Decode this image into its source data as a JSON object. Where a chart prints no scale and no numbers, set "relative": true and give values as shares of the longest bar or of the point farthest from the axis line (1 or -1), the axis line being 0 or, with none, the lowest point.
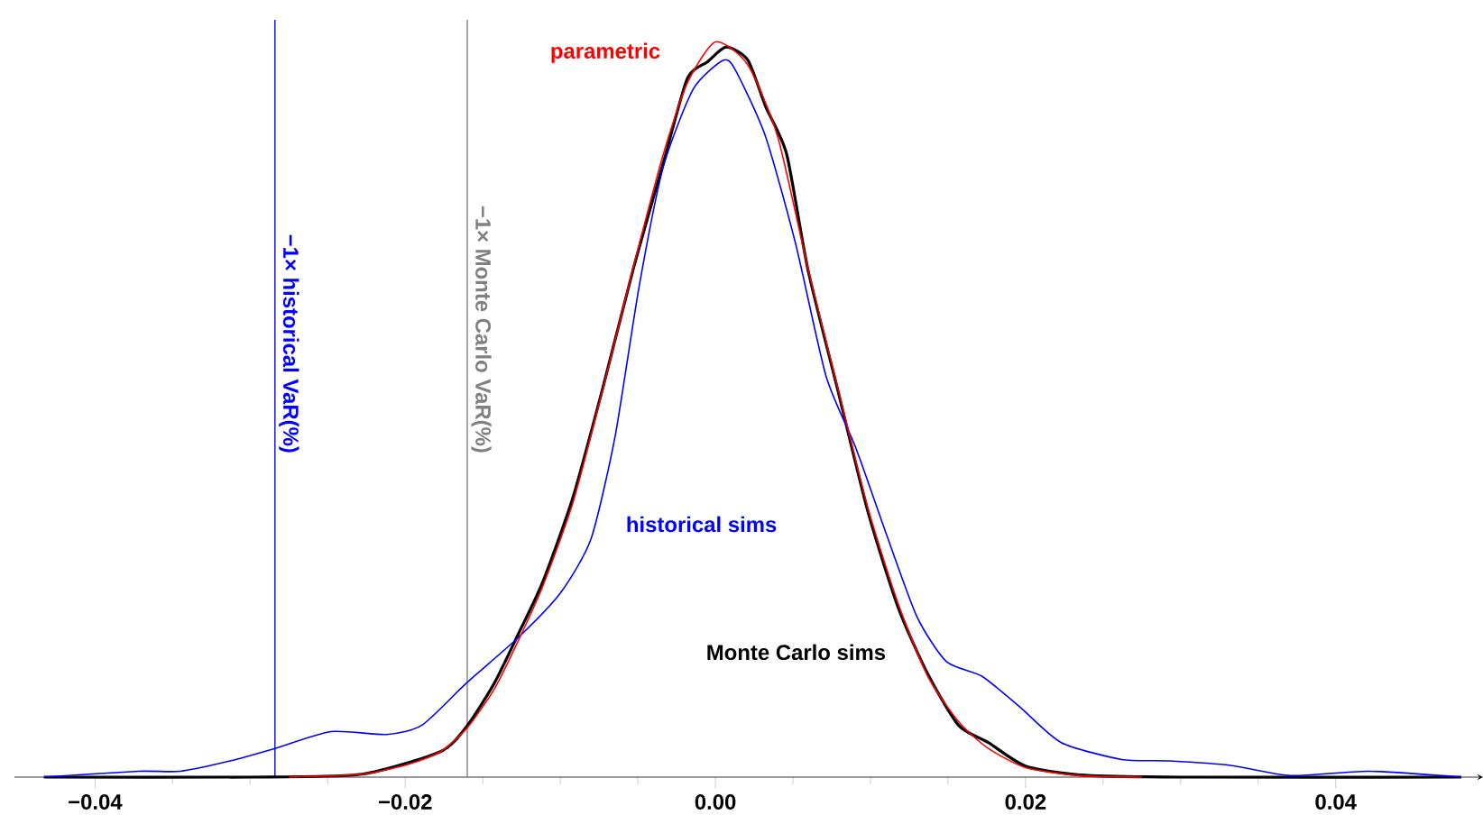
{
  "chart_data": {
    "type": "line",
    "relative": true,
    "grid": false,
    "marker": "none",
    "line_style": "solid",
    "xlim": [
      -0.0452,
      0.0495
    ],
    "xticks": [
      {
        "value": -0.04,
        "label": "−0.04"
      },
      {
        "value": -0.02,
        "label": "−0.02"
      },
      {
        "value": 0,
        "label": "0.00"
      },
      {
        "value": 0.02,
        "label": "0.02"
      },
      {
        "value": 0.04,
        "label": "0.04"
      }
    ],
    "series": [
      {
        "name": "parametric",
        "color": "#ff0000",
        "x": [
          -0.0275,
          -0.0228,
          -0.0197,
          -0.0177,
          -0.016,
          -0.01425,
          -0.0127,
          -0.01114,
          -0.00919,
          -0.00725,
          -0.00531,
          -0.00336,
          -0.00181,
          0.0,
          0.00208,
          0.00402,
          0.00597,
          0.00791,
          0.00985,
          0.0118,
          0.0137,
          0.0157,
          0.0176,
          0.02,
          0.0235,
          0.0275
        ],
        "values": [
          0,
          0.004,
          0.018,
          0.035,
          0.067,
          0.12,
          0.186,
          0.259,
          0.373,
          0.528,
          0.692,
          0.847,
          0.944,
          1.0,
          0.969,
          0.871,
          0.692,
          0.528,
          0.365,
          0.235,
          0.137,
          0.075,
          0.039,
          0.013,
          0.002,
          0
        ]
      },
      {
        "name": "Monte Carlo sims",
        "color": "#000000",
        "x": [
          -0.0433,
          -0.03,
          -0.0228,
          -0.0177,
          -0.016,
          -0.01425,
          -0.0127,
          -0.01114,
          -0.00919,
          -0.00725,
          -0.00531,
          -0.00336,
          -0.00181,
          -0.0005,
          0.0007,
          0.0021,
          0.00324,
          0.0046,
          0.00597,
          0.00791,
          0.00985,
          0.0118,
          0.0137,
          0.0157,
          0.0176,
          0.02,
          0.0235,
          0.03,
          0.0481
        ],
        "values": [
          0,
          0,
          0.004,
          0.035,
          0.07,
          0.128,
          0.195,
          0.265,
          0.38,
          0.53,
          0.69,
          0.835,
          0.95,
          0.973,
          0.993,
          0.975,
          0.912,
          0.847,
          0.69,
          0.525,
          0.36,
          0.23,
          0.14,
          0.07,
          0.047,
          0.015,
          0.003,
          0,
          0
        ]
      },
      {
        "name": "historical sims",
        "color": "#0000ff",
        "x": [
          -0.0433,
          -0.0372,
          -0.0345,
          -0.0313,
          -0.0284,
          -0.0248,
          -0.0212,
          -0.0189,
          -0.016,
          -0.0127,
          -0.00997,
          -0.00802,
          -0.00647,
          -0.00492,
          -0.00336,
          -0.00142,
          0.00052,
          0.00131,
          0.00324,
          0.00519,
          0.00714,
          0.00907,
          0.011,
          0.013,
          0.0149,
          0.0172,
          0.0196,
          0.0223,
          0.0262,
          0.0293,
          0.0332,
          0.0371,
          0.0421,
          0.0481
        ],
        "values": [
          0,
          0.008,
          0.008,
          0.022,
          0.039,
          0.062,
          0.058,
          0.071,
          0.129,
          0.19,
          0.251,
          0.324,
          0.463,
          0.667,
          0.83,
          0.936,
          0.975,
          0.961,
          0.871,
          0.724,
          0.545,
          0.447,
          0.332,
          0.218,
          0.157,
          0.137,
          0.096,
          0.047,
          0.024,
          0.022,
          0.016,
          0.002,
          0.008,
          0
        ]
      }
    ],
    "ref_lines": [
      {
        "axis": "x",
        "value": -0.0284,
        "label": "−1× historical VaR(%)",
        "color": "#0000ff"
      },
      {
        "axis": "x",
        "value": -0.016,
        "label": "−1× Monte Carlo VaR(%)",
        "color": "#808080"
      }
    ]
  }
}
